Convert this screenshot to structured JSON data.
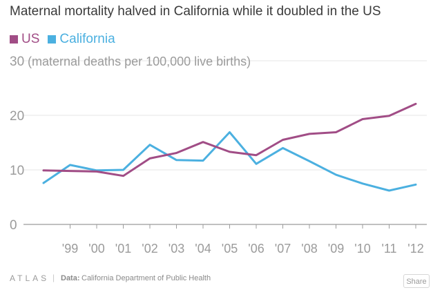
{
  "colors": {
    "us": "#a14d86",
    "california": "#4bb0e0",
    "axis": "#9b9b9b",
    "grid": "#e6e6e6",
    "title": "#3a3a3a"
  },
  "footer": {
    "logo": "ATLAS",
    "separator": "|",
    "source_label": "Data:",
    "source": "California Department of Public Health",
    "share_label": "Share"
  },
  "chart_data": {
    "type": "line",
    "title": "Maternal mortality halved in California while it doubled in the US",
    "ylabel": "(maternal deaths per 100,000 live births)",
    "ylim": [
      0,
      30
    ],
    "yticks": [
      0,
      10,
      20,
      30
    ],
    "x": [
      "",
      "'99",
      "'00",
      "'01",
      "'02",
      "'03",
      "'04",
      "'05",
      "'06",
      "'07",
      "'08",
      "'09",
      "'10",
      "'11",
      "'12"
    ],
    "legend_position": "top-left",
    "grid": true,
    "series": [
      {
        "name": "US",
        "color": "#a14d86",
        "values": [
          9.9,
          9.8,
          9.7,
          8.9,
          12.1,
          13.1,
          15.1,
          13.3,
          12.7,
          15.5,
          16.6,
          16.9,
          19.3,
          19.9,
          22.1
        ]
      },
      {
        "name": "California",
        "color": "#4bb0e0",
        "values": [
          7.6,
          10.9,
          9.9,
          10.0,
          14.6,
          11.8,
          11.7,
          16.9,
          11.1,
          14.0,
          11.6,
          9.1,
          7.5,
          6.2,
          7.3
        ]
      }
    ]
  }
}
